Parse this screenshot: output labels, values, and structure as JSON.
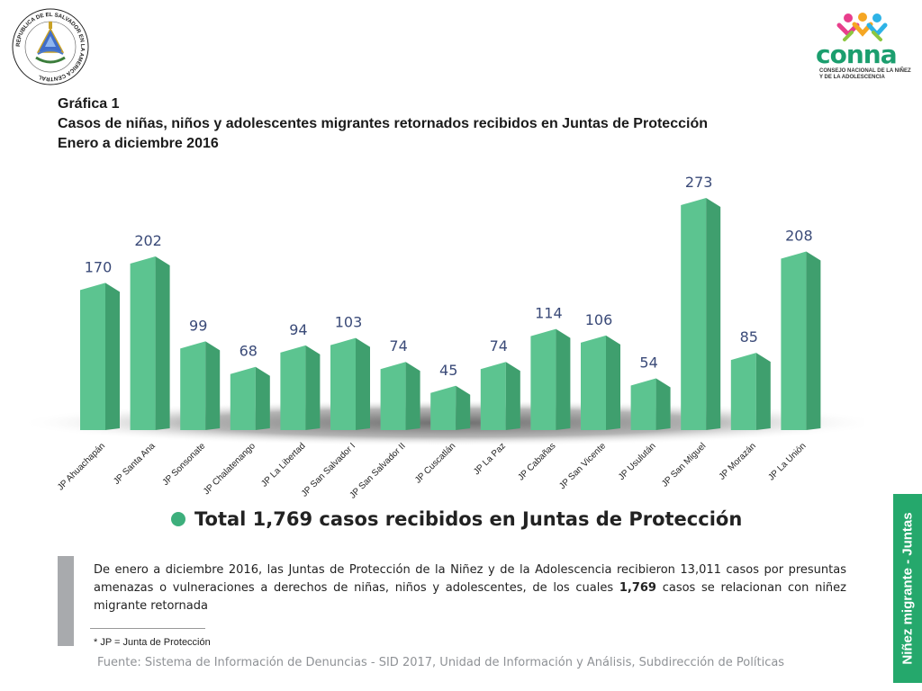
{
  "header": {
    "graph_number": "Gráfica 1",
    "title": "Casos de niñas, niños y adolescentes migrantes retornados recibidos en Juntas de Protección",
    "period": "Enero a diciembre 2016"
  },
  "logos": {
    "seal_text": "REPUBLICA DE EL SALVADOR EN LA AMERICA CENTRAL",
    "brand": "conna",
    "brand_tagline": "CONSEJO NACIONAL DE LA NIÑEZ Y DE LA ADOLESCENCIA"
  },
  "chart_data": {
    "type": "bar",
    "categories": [
      "JP Ahuachapán",
      "JP Santa Ana",
      "JP Sonsonate",
      "JP Chalatenango",
      "JP La Libertad",
      "JP San Salvador I",
      "JP San Salvador II",
      "JP Cuscatlán",
      "JP La Paz",
      "JP Cabañas",
      "JP San Vicente",
      "JP Usulután",
      "JP San Miguel",
      "JP Morazán",
      "JP La Unión"
    ],
    "values": [
      170,
      202,
      99,
      68,
      94,
      103,
      74,
      45,
      74,
      114,
      106,
      54,
      273,
      85,
      208
    ],
    "ylim": [
      0,
      273
    ],
    "grid": false,
    "legend": "none",
    "bar_color": "#5cc490",
    "bar_side_color": "#3f9f6e",
    "label_color": "#3a4a78"
  },
  "total_label": "Total 1,769 casos recibidos en Juntas de Protección",
  "body": {
    "text_before": "De enero a diciembre 2016, las Juntas de Protección de la Niñez y de la Adolescencia recibieron 13,011 casos por presuntas amenazas o vulneraciones a derechos de niñas, niños y adolescentes, de los cuales ",
    "highlight": "1,769",
    "text_after": " casos se relacionan con niñez migrante retornada"
  },
  "footnote": "* JP = Junta de Protección",
  "source": "Fuente: Sistema de Información de Denuncias - SID 2017, Unidad de Información y Análisis, Subdirección de Políticas",
  "side_tab": "Niñez migrante - Juntas"
}
